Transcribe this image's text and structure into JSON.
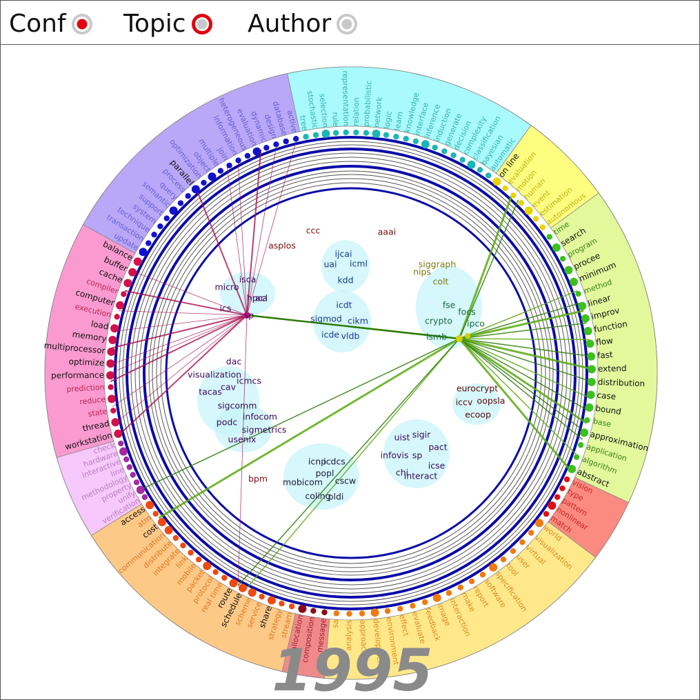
{
  "toolbar": {
    "modes": [
      {
        "label": "Conf",
        "state": "selected-filled"
      },
      {
        "label": "Topic",
        "state": "active-ring"
      },
      {
        "label": "Author",
        "state": "unselected"
      }
    ]
  },
  "year": "1995",
  "segments": [
    {
      "name": "purple",
      "color": "#b9a7f7",
      "dot": "#1111cc",
      "label": "#5555cc",
      "words": [
        "update",
        "transaction",
        "technique",
        "system",
        "support",
        "semantic",
        "query",
        "process",
        "parallel",
        "optimization",
        "object",
        "multiple",
        "join",
        "information",
        "heterogeneous",
        "evaluation",
        "dynamic",
        "design",
        "database",
        "active"
      ],
      "bold": [
        "parallel"
      ]
    },
    {
      "name": "cyan",
      "color": "#a8fafc",
      "dot": "#1bb6b6",
      "label": "#22a6a6",
      "words": [
        "tree",
        "stochastic",
        "selection",
        "rule",
        "representation",
        "relation",
        "probabilistic",
        "network",
        "logic",
        "learn",
        "knowledge",
        "interface",
        "inference",
        "induction",
        "generate",
        "decision",
        "complexity",
        "classification",
        "bayesian",
        "automatic"
      ],
      "bold": []
    },
    {
      "name": "yellow",
      "color": "#fdfd80",
      "dot": "#e8d400",
      "label": "#b5a300",
      "words": [
        "on line",
        "evaluation",
        "motion",
        "human",
        "event",
        "estimation",
        "autonomous"
      ],
      "bold": [
        "on line"
      ]
    },
    {
      "name": "lime",
      "color": "#e2f89b",
      "dot": "#3cc01a",
      "label": "#1a6b00",
      "words": [
        "time",
        "search",
        "program",
        "procee",
        "minimum",
        "method",
        "linear",
        "improv",
        "function",
        "flow",
        "fast",
        "extend",
        "distribution",
        "case",
        "bound",
        "base",
        "approximation",
        "application",
        "algorithm",
        "abstract"
      ],
      "bold": [
        "search",
        "procee",
        "minimum",
        "linear",
        "improv",
        "function",
        "flow",
        "fast",
        "extend",
        "distribution",
        "case",
        "bound",
        "approximation",
        "abstract"
      ]
    },
    {
      "name": "salmon",
      "color": "#fb8a80",
      "dot": "#e01010",
      "label": "#c01010",
      "words": [
        "vision",
        "type",
        "pattern",
        "nonlinear",
        "match"
      ],
      "bold": []
    },
    {
      "name": "gold",
      "color": "#ffe88a",
      "dot": "#ee7a10",
      "label": "#d47a10",
      "words": [
        "world",
        "visualization",
        "virtual",
        "user",
        "tool",
        "specification",
        "software",
        "report",
        "make",
        "interaction",
        "image",
        "feedback",
        "evaluate",
        "effect",
        "environment",
        "development",
        "approach",
        "analysis",
        "sa"
      ],
      "bold": []
    },
    {
      "name": "red",
      "color": "#f08a8a",
      "dot": "#8a0a1a",
      "label": "#8a1020",
      "words": [
        "message",
        "composition",
        "allocation"
      ],
      "bold": []
    },
    {
      "name": "orange",
      "color": "#fdc987",
      "dot": "#ee4a10",
      "label": "#d86a10",
      "words": [
        "stream",
        "strategy",
        "share",
        "service",
        "scheme",
        "schedule",
        "route",
        "real time",
        "protocol",
        "packet",
        "mobile",
        "link",
        "integrate",
        "distribute",
        "communication",
        "cost",
        "atm",
        "access"
      ],
      "bold": [
        "share",
        "schedule",
        "route",
        "cost",
        "access"
      ]
    },
    {
      "name": "pink",
      "color": "#f6c8fb",
      "dot": "#a22aa2",
      "label": "#b070b8",
      "words": [
        "verification",
        "unify",
        "property",
        "methodology",
        "line",
        "interactive",
        "hardware",
        "check"
      ],
      "bold": []
    },
    {
      "name": "magenta",
      "color": "#fa9ad0",
      "dot": "#d2104a",
      "label": "#b01040",
      "words": [
        "workstation",
        "thread",
        "state",
        "reduce",
        "prediction",
        "performance",
        "optimize",
        "multiprocessor",
        "memory",
        "load",
        "execution",
        "computer",
        "compiler",
        "cache",
        "buffer",
        "balance"
      ],
      "bold": [
        "workstation",
        "thread",
        "performance",
        "optimize",
        "multiprocessor",
        "memory",
        "load",
        "computer",
        "cache",
        "buffer",
        "balance"
      ]
    }
  ],
  "conferences": [
    {
      "label": "ccc",
      "color": "#7a1010"
    },
    {
      "label": "aaai",
      "color": "#7a1010"
    },
    {
      "label": "asplos",
      "color": "#7a1010"
    },
    {
      "label": "ijcai",
      "color": "#1a3a8a"
    },
    {
      "label": "uai",
      "color": "#1a3a8a"
    },
    {
      "label": "icml",
      "color": "#1a3a8a"
    },
    {
      "label": "kdd",
      "color": "#1a3a8a"
    },
    {
      "label": "icdt",
      "color": "#1a3a8a"
    },
    {
      "label": "sigmod",
      "color": "#1a3a8a"
    },
    {
      "label": "cikm",
      "color": "#1a3a8a"
    },
    {
      "label": "icde",
      "color": "#1a3a8a"
    },
    {
      "label": "vldb",
      "color": "#1a3a8a"
    },
    {
      "label": "siggraph",
      "color": "#7a7a10"
    },
    {
      "label": "nips",
      "color": "#7a7a10"
    },
    {
      "label": "colt",
      "color": "#7a7a10"
    },
    {
      "label": "fse",
      "color": "#1a6a3a"
    },
    {
      "label": "focs",
      "color": "#1a6a3a"
    },
    {
      "label": "crypto",
      "color": "#1a6a3a"
    },
    {
      "label": "ipco",
      "color": "#1a6a3a"
    },
    {
      "label": "ismb",
      "color": "#1a6a3a"
    },
    {
      "label": "isca",
      "color": "#3a0a5a"
    },
    {
      "label": "micro",
      "color": "#3a0a5a"
    },
    {
      "label": "hpca",
      "color": "#3a0a5a"
    },
    {
      "label": "acl",
      "color": "#3a0a5a"
    },
    {
      "label": "ics",
      "color": "#3a0a5a"
    },
    {
      "label": "sp",
      "color": "#3a0a5a"
    },
    {
      "label": "dac",
      "color": "#3a0a5a"
    },
    {
      "label": "visualization",
      "color": "#3a0a5a"
    },
    {
      "label": "icmcs",
      "color": "#3a0a5a"
    },
    {
      "label": "cav",
      "color": "#3a0a5a"
    },
    {
      "label": "tacas",
      "color": "#3a0a5a"
    },
    {
      "label": "sigcomm",
      "color": "#3a0a5a"
    },
    {
      "label": "infocom",
      "color": "#3a0a5a"
    },
    {
      "label": "podc",
      "color": "#3a0a5a"
    },
    {
      "label": "sigmetrics",
      "color": "#3a0a5a"
    },
    {
      "label": "usenix",
      "color": "#3a0a5a"
    },
    {
      "label": "bpm",
      "color": "#7a1010"
    },
    {
      "label": "eurocrypt",
      "color": "#5a0a0a"
    },
    {
      "label": "iccv",
      "color": "#5a0a0a"
    },
    {
      "label": "oopsla",
      "color": "#5a0a0a"
    },
    {
      "label": "ecoop",
      "color": "#5a0a0a"
    },
    {
      "label": "uist",
      "color": "#3a0a5a"
    },
    {
      "label": "sigir",
      "color": "#3a0a5a"
    },
    {
      "label": "pact",
      "color": "#3a0a5a"
    },
    {
      "label": "infovis",
      "color": "#3a0a5a"
    },
    {
      "label": "sp",
      "color": "#3a0a5a"
    },
    {
      "label": "icse",
      "color": "#3a0a5a"
    },
    {
      "label": "chi",
      "color": "#3a0a5a"
    },
    {
      "label": "interact",
      "color": "#3a0a5a"
    },
    {
      "label": "icnp",
      "color": "#1a1a3a"
    },
    {
      "label": "icdcs",
      "color": "#1a1a3a"
    },
    {
      "label": "popl",
      "color": "#1a1a3a"
    },
    {
      "label": "mobicom",
      "color": "#1a1a3a"
    },
    {
      "label": "cscw",
      "color": "#1a1a3a"
    },
    {
      "label": "coling",
      "color": "#1a1a3a"
    },
    {
      "label": "pldi",
      "color": "#1a1a3a"
    }
  ]
}
